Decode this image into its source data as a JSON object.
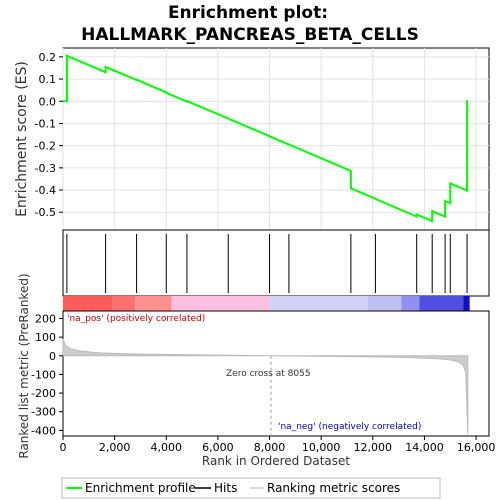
{
  "chart_data": {
    "type": "line",
    "title_line1": "Enrichment plot:",
    "title_line2": "HALLMARK_PANCREAS_BETA_CELLS",
    "top_panel": {
      "ylabel": "Enrichment score (ES)",
      "ylim": [
        -0.58,
        0.24
      ],
      "yticks": [
        0.2,
        0.1,
        0.0,
        -0.1,
        -0.2,
        -0.3,
        -0.4,
        -0.5
      ],
      "ytick_labels": [
        "0.2",
        "0.1",
        "0.0",
        "-0.1",
        "-0.2",
        "-0.3",
        "-0.4",
        "-0.5"
      ],
      "grid": true,
      "line_color": "#00ff00"
    },
    "hits": [
      150,
      1650,
      2850,
      4000,
      4800,
      6400,
      8000,
      8750,
      11150,
      12100,
      13700,
      14300,
      14800,
      15000,
      15650
    ],
    "es_peaks": [
      {
        "x": 0,
        "y": 0.0
      },
      {
        "x": 150,
        "y": 0.205
      },
      {
        "x": 1650,
        "y": 0.155
      },
      {
        "x": 2850,
        "y": 0.097
      },
      {
        "x": 4000,
        "y": 0.038
      },
      {
        "x": 4800,
        "y": 0.001
      },
      {
        "x": 6400,
        "y": -0.078
      },
      {
        "x": 8000,
        "y": -0.158
      },
      {
        "x": 8750,
        "y": -0.195
      },
      {
        "x": 11150,
        "y": -0.392
      },
      {
        "x": 12100,
        "y": -0.44
      },
      {
        "x": 13700,
        "y": -0.51
      },
      {
        "x": 14300,
        "y": -0.495
      },
      {
        "x": 14800,
        "y": -0.45
      },
      {
        "x": 15000,
        "y": -0.37
      },
      {
        "x": 15650,
        "y": 0.005
      }
    ],
    "bottom_panel": {
      "ylabel": "Ranked list metric (PreRanked)",
      "ylim": [
        -430,
        240
      ],
      "yticks": [
        200,
        100,
        0,
        -100,
        -200,
        -300,
        -400
      ],
      "ytick_labels": [
        "200",
        "100",
        "0",
        "-100",
        "-200",
        "-300",
        "-400"
      ],
      "metric_curve": [
        {
          "x": 0,
          "y": 90
        },
        {
          "x": 100,
          "y": 55
        },
        {
          "x": 300,
          "y": 38
        },
        {
          "x": 700,
          "y": 25
        },
        {
          "x": 1500,
          "y": 15
        },
        {
          "x": 3000,
          "y": 9
        },
        {
          "x": 5000,
          "y": 5
        },
        {
          "x": 7000,
          "y": 2
        },
        {
          "x": 8055,
          "y": 0
        },
        {
          "x": 10000,
          "y": -3
        },
        {
          "x": 12000,
          "y": -6
        },
        {
          "x": 13500,
          "y": -10
        },
        {
          "x": 14500,
          "y": -16
        },
        {
          "x": 15000,
          "y": -22
        },
        {
          "x": 15300,
          "y": -32
        },
        {
          "x": 15500,
          "y": -50
        },
        {
          "x": 15600,
          "y": -90
        },
        {
          "x": 15680,
          "y": -420
        }
      ],
      "zero_cross_x": 8055
    },
    "x_axis": {
      "label": "Rank in Ordered Dataset",
      "range": [
        0,
        16500
      ],
      "ticks": [
        0,
        2000,
        4000,
        6000,
        8000,
        10000,
        12000,
        14000,
        16000
      ],
      "tick_labels": [
        "0",
        "2,000",
        "4,000",
        "6,000",
        "8,000",
        "10,000",
        "12,000",
        "14,000",
        "16,000"
      ]
    },
    "ranking_band": [
      {
        "start": 0,
        "end": 1900,
        "color": "#ff5b5b"
      },
      {
        "start": 1900,
        "end": 2800,
        "color": "#ff7070"
      },
      {
        "start": 2800,
        "end": 4200,
        "color": "#ff9090"
      },
      {
        "start": 4200,
        "end": 8000,
        "color": "#ffbfe0"
      },
      {
        "start": 8000,
        "end": 11800,
        "color": "#d2d2f5"
      },
      {
        "start": 11800,
        "end": 13100,
        "color": "#c0c0f0"
      },
      {
        "start": 13100,
        "end": 13800,
        "color": "#9090ee"
      },
      {
        "start": 13800,
        "end": 15500,
        "color": "#5050e0"
      },
      {
        "start": 15500,
        "end": 15750,
        "color": "#1010c0"
      }
    ],
    "annotations": {
      "pos_label": "'na_pos' (positively correlated)",
      "neg_label": "'na_neg' (negatively correlated)",
      "zero_cross_label": "Zero cross at 8055",
      "pos_color": "#cc0000",
      "neg_color": "#0000cc"
    },
    "legend": {
      "items": [
        {
          "label": "Enrichment profile",
          "color": "#00ff00"
        },
        {
          "label": "Hits",
          "color": "#000000"
        },
        {
          "label": "Ranking metric scores",
          "color": "#cccccc"
        }
      ]
    }
  }
}
